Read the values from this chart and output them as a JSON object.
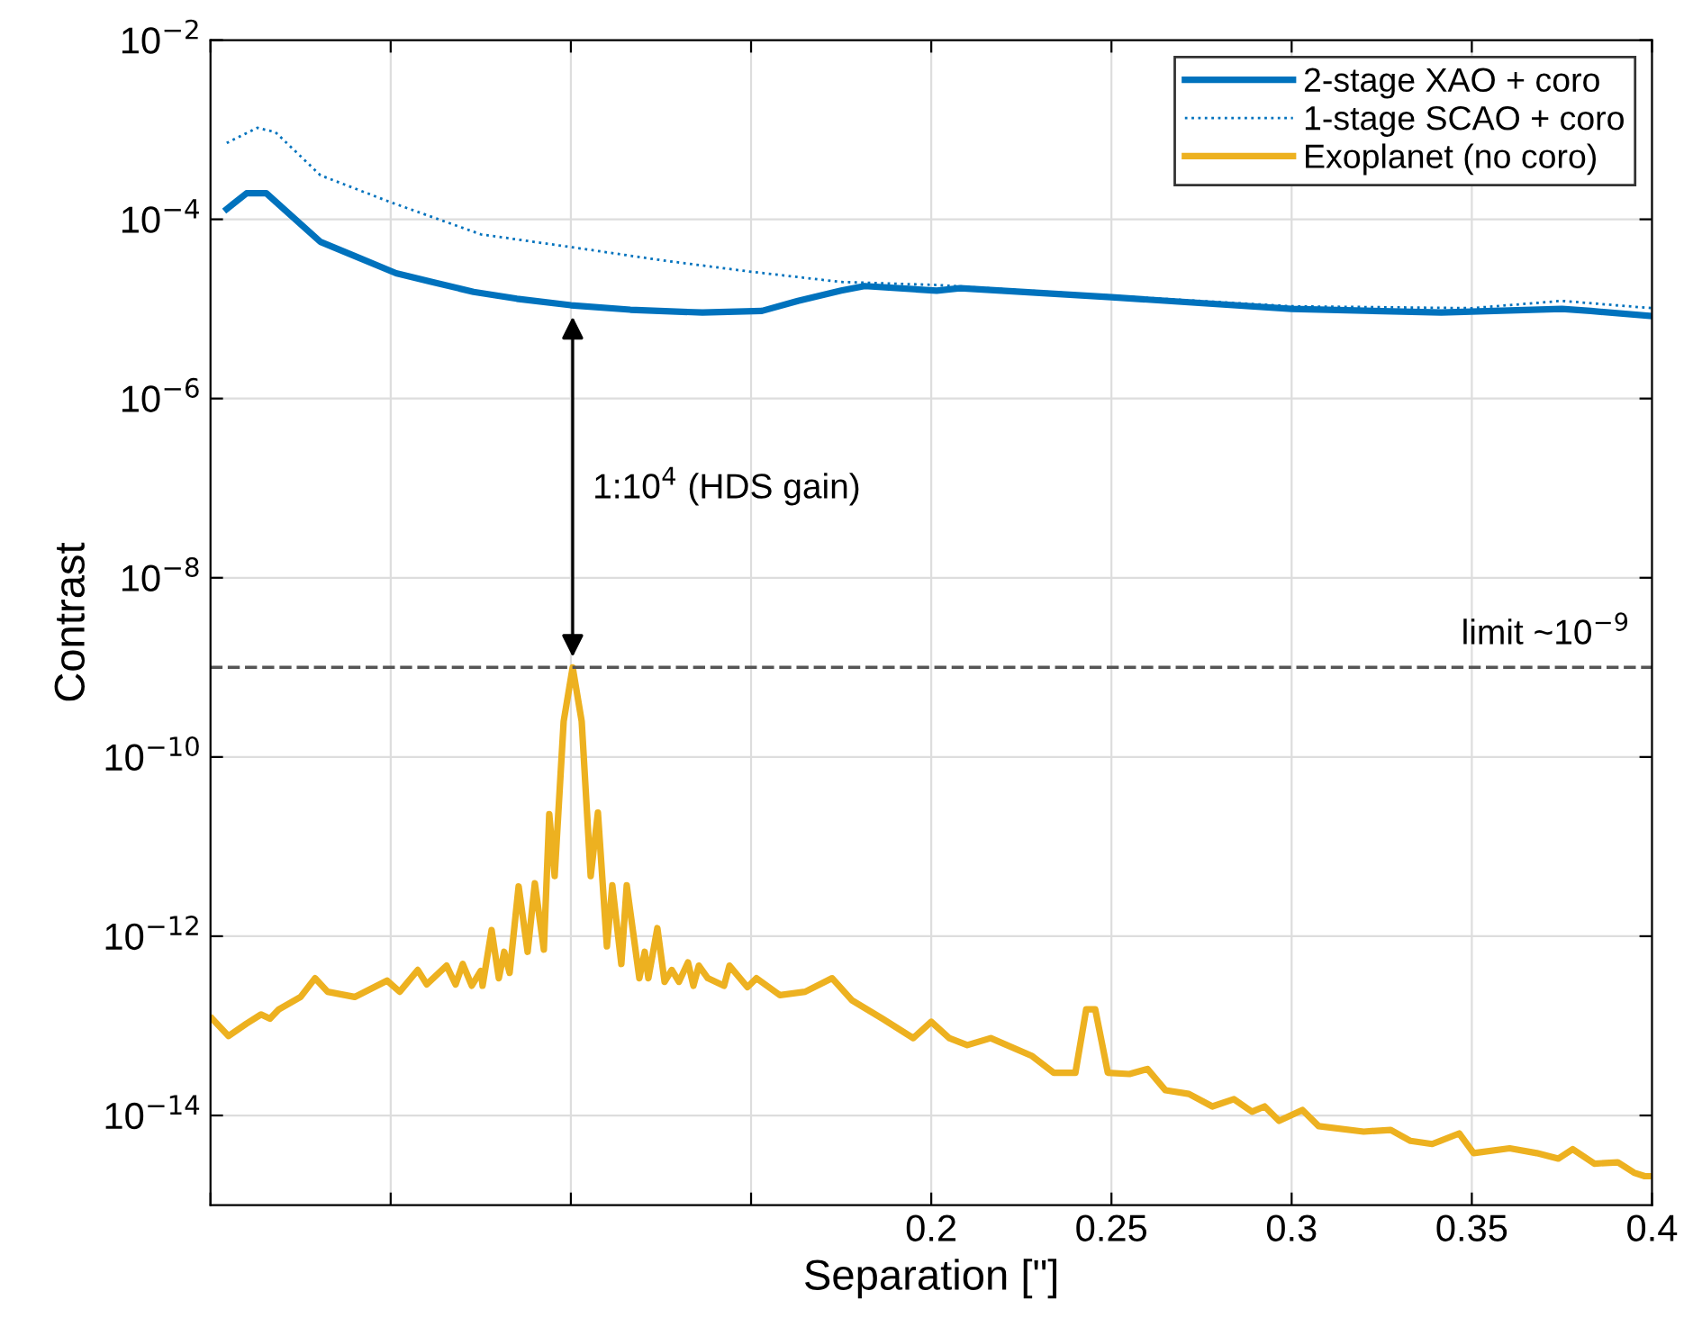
{
  "chart_data": {
    "type": "line",
    "xlabel": "Separation [\"]",
    "ylabel": "Contrast",
    "log": "y",
    "xlim": [
      0,
      0.4
    ],
    "ylim": [
      1e-15,
      0.01
    ],
    "xticks": [
      {
        "value": 0,
        "label": null
      },
      {
        "value": 0.05,
        "label": null
      },
      {
        "value": 0.1,
        "label": null
      },
      {
        "value": 0.15,
        "label": null
      },
      0.2,
      0.25,
      0.3,
      0.35,
      0.4
    ],
    "yticks": [
      {
        "value": 1e-14,
        "label": "10$^{−14}$"
      },
      {
        "value": 1e-12,
        "label": "10$^{−12}$"
      },
      {
        "value": 1e-10,
        "label": "10$^{−10}$"
      },
      {
        "value": 1e-08,
        "label": "10$^{−8}$"
      },
      {
        "value": 1e-06,
        "label": "10$^{−6}$"
      },
      {
        "value": 0.0001,
        "label": "10$^{−4}$"
      },
      {
        "value": 0.01,
        "label": "10$^{−2}$"
      }
    ],
    "grid": true,
    "legend": "top right",
    "series": [
      {
        "name": "2-stage XAO + coro",
        "color": "#0072bd",
        "line_style": "solid",
        "x": [
          0.0045,
          0.01,
          0.0155,
          0.0305,
          0.04,
          0.0515,
          0.0615,
          0.073,
          0.085,
          0.1,
          0.1165,
          0.1365,
          0.153,
          0.163,
          0.175,
          0.1815,
          0.2015,
          0.208,
          0.25,
          0.3,
          0.3415,
          0.375,
          0.383,
          0.4
        ],
        "values": [
          0.00013,
          0.000195,
          0.000195,
          5.6e-05,
          3.9e-05,
          2.5e-05,
          2e-05,
          1.55e-05,
          1.3e-05,
          1.1e-05,
          9.8e-06,
          9.1e-06,
          9.5e-06,
          1.23e-05,
          1.6e-05,
          1.8e-05,
          1.6e-05,
          1.7e-05,
          1.35e-05,
          1e-05,
          9.1e-06,
          1e-05,
          9.5e-06,
          8.3e-06
        ]
      },
      {
        "name": "1-stage SCAO + coro",
        "color": "#0072bd",
        "line_style": "dotted",
        "x": [
          0.0045,
          0.013,
          0.018,
          0.0305,
          0.05,
          0.075,
          0.1,
          0.125,
          0.15,
          0.175,
          0.2015,
          0.25,
          0.3,
          0.35,
          0.375,
          0.4
        ],
        "values": [
          0.00071,
          0.00105,
          0.00094,
          0.00031,
          0.000155,
          6.8e-05,
          4.9e-05,
          3.5e-05,
          2.6e-05,
          2e-05,
          1.85e-05,
          1.4e-05,
          1.07e-05,
          1.02e-05,
          1.23e-05,
          1.02e-05
        ]
      },
      {
        "name": "Exoplanet (no coro)",
        "color": "#edb120",
        "line_style": "solid",
        "x": [
          0.0005,
          0.005,
          0.01,
          0.014,
          0.0165,
          0.019,
          0.025,
          0.029,
          0.0325,
          0.04,
          0.049,
          0.0525,
          0.0575,
          0.06,
          0.0655,
          0.068,
          0.07,
          0.0725,
          0.075,
          0.0755,
          0.078,
          0.08,
          0.0815,
          0.083,
          0.0855,
          0.088,
          0.09,
          0.0925,
          0.094,
          0.0955,
          0.098,
          0.1005,
          0.103,
          0.1055,
          0.1075,
          0.11,
          0.1115,
          0.114,
          0.1155,
          0.119,
          0.1205,
          0.1215,
          0.124,
          0.126,
          0.128,
          0.13,
          0.1325,
          0.134,
          0.1355,
          0.138,
          0.1425,
          0.144,
          0.149,
          0.1515,
          0.158,
          0.165,
          0.1725,
          0.178,
          0.1865,
          0.195,
          0.2,
          0.205,
          0.21,
          0.2165,
          0.228,
          0.234,
          0.24,
          0.243,
          0.2455,
          0.249,
          0.255,
          0.26,
          0.265,
          0.2715,
          0.278,
          0.284,
          0.289,
          0.2925,
          0.2965,
          0.303,
          0.3075,
          0.32,
          0.3275,
          0.333,
          0.339,
          0.3465,
          0.3505,
          0.3605,
          0.368,
          0.374,
          0.378,
          0.384,
          0.3905,
          0.395,
          0.398,
          0.4
        ],
        "values": [
          1.2e-13,
          7.7e-14,
          1.06e-13,
          1.34e-13,
          1.2e-13,
          1.53e-13,
          2.1e-13,
          3.4e-13,
          2.4e-13,
          2.1e-13,
          3.2e-13,
          2.4e-13,
          4.2e-13,
          2.9e-13,
          4.7e-13,
          2.9e-13,
          4.9e-13,
          2.8e-13,
          4.1e-13,
          2.8e-13,
          1.17e-12,
          3.4e-13,
          6.7e-13,
          3.9e-13,
          3.6e-12,
          6.7e-13,
          3.9e-12,
          7.1e-13,
          2.3e-11,
          4.7e-12,
          2.5e-10,
          1e-09,
          2.5e-10,
          4.7e-12,
          2.4e-11,
          7.7e-13,
          3.7e-12,
          4.9e-13,
          3.7e-12,
          3.4e-13,
          6.7e-13,
          3.4e-13,
          1.23e-12,
          3.1e-13,
          4.2e-13,
          3.1e-13,
          5.1e-13,
          2.8e-13,
          4.7e-13,
          3.4e-13,
          2.8e-13,
          4.7e-13,
          2.7e-13,
          3.4e-13,
          2.2e-13,
          2.4e-13,
          3.4e-13,
          1.93e-13,
          1.2e-13,
          7.3e-14,
          1.11e-13,
          7.3e-14,
          6.1e-14,
          7.3e-14,
          4.6e-14,
          3e-14,
          3e-14,
          1.53e-13,
          1.53e-13,
          3e-14,
          2.9e-14,
          3.3e-14,
          1.91e-14,
          1.74e-14,
          1.26e-14,
          1.52e-14,
          1.1e-14,
          1.26e-14,
          8.7e-15,
          1.15e-14,
          7.6e-15,
          6.6e-15,
          6.9e-15,
          5.2e-15,
          4.8e-15,
          6.3e-15,
          3.8e-15,
          4.3e-15,
          3.8e-15,
          3.3e-15,
          4.2e-15,
          2.9e-15,
          3e-15,
          2.3e-15,
          2.1e-15,
          2.1e-15
        ]
      }
    ],
    "ref_lines": [
      {
        "axis": "y",
        "value": 1e-09,
        "label": "limit ~10$^{−9}$",
        "color": "#555555",
        "line_style": "dashed"
      }
    ],
    "annotations": [
      "1:10$^{4}$ (HDS gain)"
    ]
  }
}
